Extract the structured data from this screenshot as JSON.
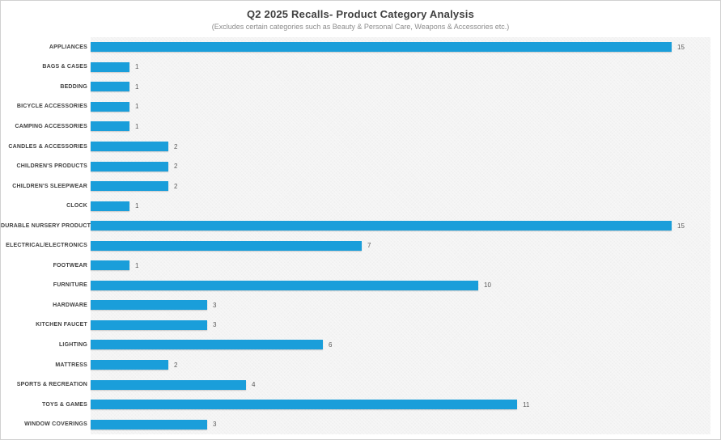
{
  "header": {
    "title": "Q2 2025 Recalls- Product Category Analysis",
    "subtitle": "(Excludes certain categories such as Beauty & Personal Care, Weapons & Accessories etc.)"
  },
  "colors": {
    "bar": "#1A9EDA",
    "label_text": "#3F3F3F",
    "value_text": "#595959",
    "title_text": "#3F3F3F",
    "subtitle_text": "#8C8C8C",
    "plot_background": "#F4F4F4"
  },
  "chart_data": {
    "type": "bar",
    "orientation": "horizontal",
    "title": "Q2 2025 Recalls- Product Category Analysis",
    "subtitle": "(Excludes certain categories such as Beauty & Personal Care, Weapons & Accessories etc.)",
    "categories": [
      "APPLIANCES",
      "BAGS & CASES",
      "BEDDING",
      "BICYCLE ACCESSORIES",
      "CAMPING ACCESSORIES",
      "CANDLES & ACCESSORIES",
      "CHILDREN'S PRODUCTS",
      "CHILDREN'S SLEEPWEAR",
      "CLOCK",
      "DURABLE NURSERY PRODUCT",
      "ELECTRICAL/ELECTRONICS",
      "FOOTWEAR",
      "FURNITURE",
      "HARDWARE",
      "KITCHEN FAUCET",
      "LIGHTING",
      "MATTRESS",
      "SPORTS & RECREATION",
      "TOYS & GAMES",
      "WINDOW COVERINGS"
    ],
    "values": [
      15,
      1,
      1,
      1,
      1,
      2,
      2,
      2,
      1,
      15,
      7,
      1,
      10,
      3,
      3,
      6,
      2,
      4,
      11,
      3
    ],
    "xlabel": "",
    "ylabel": "",
    "xlim": [
      0,
      16
    ],
    "grid": false,
    "legend": "none",
    "value_labels": true
  }
}
